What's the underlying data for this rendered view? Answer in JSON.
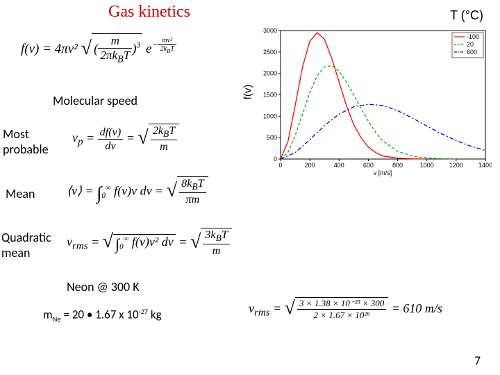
{
  "title": "Gas kinetics",
  "temp_label": "T (°C)",
  "fv_axis_label": "f(v)",
  "molecular_speed_label": "Molecular speed",
  "labels": {
    "most_probable": "Most\nprobable",
    "mean": "Mean",
    "quadratic_mean": "Quadratic\nmean"
  },
  "formula_main": {
    "lhs": "f(v) = 4πv²",
    "frac_num": "m",
    "frac_den": "2πk_BT",
    "exp_outer": "3",
    "exp_label": "e",
    "exp_num": "mv²",
    "exp_den": "2k_BT"
  },
  "eq_mp": {
    "lhs": "v_p",
    "mid": "df(v)",
    "mid_den": "dv",
    "rhs_num": "2k_BT",
    "rhs_den": "m"
  },
  "eq_mean": {
    "lhs": "⟨v⟩",
    "int_lo": "0",
    "int_hi": "∞",
    "integrand": "f(v)v dv",
    "rhs_num": "8k_BT",
    "rhs_den": "πm"
  },
  "eq_qm": {
    "lhs": "v_rms",
    "integrand": "f(v)v² dv",
    "rhs_num": "3k_BT",
    "rhs_den": "m"
  },
  "neon_line": "Neon @ 300 K",
  "mass_line": {
    "pre": "m",
    "sub": "Ne",
    "post": " = 20 • 1.67 x 10",
    "exp": "-27",
    "tail": " kg"
  },
  "vrms_numeric": {
    "lhs": "v_rms",
    "num": "3 × 1.38 × 10⁻²³ × 300",
    "den": "2 × 1.67 × 10²⁶",
    "result": "= 610 m/s"
  },
  "page_number": "7",
  "chart": {
    "type": "line",
    "background_color": "#ffffff",
    "grid_color": "#dddddd",
    "xlim": [
      0,
      1400
    ],
    "ylim": [
      0,
      3000
    ],
    "xticks": [
      0,
      200,
      400,
      600,
      800,
      1000,
      1200,
      1400
    ],
    "yticks": [
      0,
      500,
      1000,
      1500,
      2000,
      2500,
      3000
    ],
    "xlabel": "v [m/s]",
    "legend": {
      "position": "top-right",
      "items": [
        "-100",
        "20",
        "600"
      ]
    },
    "series": [
      {
        "name": "-100",
        "color": "#ff0000",
        "style": "solid",
        "points": [
          [
            0,
            0
          ],
          [
            50,
            400
          ],
          [
            100,
            1250
          ],
          [
            150,
            2150
          ],
          [
            200,
            2750
          ],
          [
            250,
            2950
          ],
          [
            300,
            2800
          ],
          [
            350,
            2350
          ],
          [
            400,
            1800
          ],
          [
            450,
            1250
          ],
          [
            500,
            800
          ],
          [
            550,
            500
          ],
          [
            600,
            280
          ],
          [
            650,
            150
          ],
          [
            700,
            70
          ],
          [
            800,
            20
          ],
          [
            900,
            5
          ],
          [
            1000,
            0
          ]
        ]
      },
      {
        "name": "20",
        "color": "#00b000",
        "style": "dashed",
        "points": [
          [
            0,
            0
          ],
          [
            50,
            150
          ],
          [
            100,
            550
          ],
          [
            150,
            1050
          ],
          [
            200,
            1550
          ],
          [
            250,
            1950
          ],
          [
            300,
            2150
          ],
          [
            350,
            2180
          ],
          [
            400,
            2050
          ],
          [
            450,
            1800
          ],
          [
            500,
            1500
          ],
          [
            550,
            1180
          ],
          [
            600,
            880
          ],
          [
            650,
            620
          ],
          [
            700,
            420
          ],
          [
            800,
            180
          ],
          [
            900,
            70
          ],
          [
            1000,
            25
          ],
          [
            1100,
            8
          ],
          [
            1200,
            0
          ]
        ]
      },
      {
        "name": "600",
        "color": "#0000dd",
        "style": "dashdot",
        "points": [
          [
            0,
            0
          ],
          [
            100,
            150
          ],
          [
            200,
            450
          ],
          [
            300,
            780
          ],
          [
            400,
            1050
          ],
          [
            500,
            1220
          ],
          [
            600,
            1280
          ],
          [
            700,
            1250
          ],
          [
            800,
            1130
          ],
          [
            900,
            960
          ],
          [
            1000,
            770
          ],
          [
            1100,
            590
          ],
          [
            1200,
            430
          ],
          [
            1300,
            300
          ],
          [
            1400,
            200
          ]
        ]
      }
    ]
  }
}
